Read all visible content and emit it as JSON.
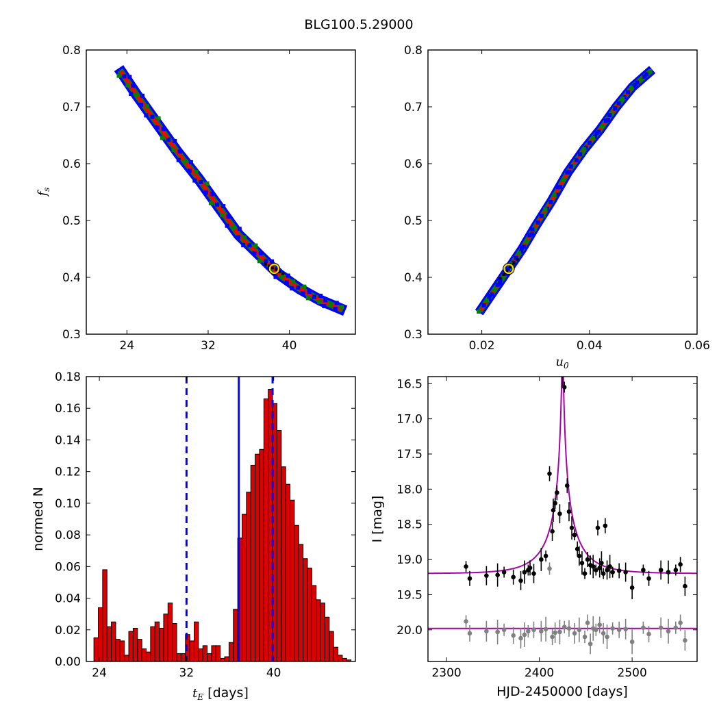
{
  "figure": {
    "title": "BLG100.5.29000"
  },
  "colors": {
    "outer": "#0000ff",
    "mid": "#008000",
    "inner": "#ff0000",
    "core": "#000000",
    "best": "#ffd700",
    "bar": "#dd0000",
    "vline": "#0000ff",
    "model": "#aa00aa",
    "resid": "#808080"
  },
  "chart_data": [
    {
      "id": "fs_vs_tE",
      "type": "heatmap",
      "ylabel": "fs",
      "xlim": [
        20,
        46.5
      ],
      "ylim": [
        0.3,
        0.8
      ],
      "xticks": [
        "24",
        "32",
        "40"
      ],
      "yticks": [
        "0.3",
        "0.4",
        "0.5",
        "0.6",
        "0.7",
        "0.8"
      ],
      "contour_track": [
        [
          23.5,
          0.76
        ],
        [
          25,
          0.72
        ],
        [
          27,
          0.67
        ],
        [
          29,
          0.62
        ],
        [
          31,
          0.575
        ],
        [
          33,
          0.525
        ],
        [
          35,
          0.475
        ],
        [
          37,
          0.44
        ],
        [
          39,
          0.405
        ],
        [
          41,
          0.38
        ],
        [
          43,
          0.36
        ],
        [
          45,
          0.345
        ]
      ],
      "best_fit": {
        "x": 38.5,
        "y": 0.415
      }
    },
    {
      "id": "fs_vs_u0",
      "type": "heatmap",
      "xlabel": "u0",
      "xlim": [
        0.01,
        0.06
      ],
      "ylim": [
        0.3,
        0.8
      ],
      "xticks": [
        "0.02",
        "0.04",
        "0.06"
      ],
      "yticks": [
        "0.3",
        "0.4",
        "0.5",
        "0.6",
        "0.7",
        "0.8"
      ],
      "contour_track": [
        [
          0.02,
          0.345
        ],
        [
          0.0225,
          0.38
        ],
        [
          0.025,
          0.415
        ],
        [
          0.0275,
          0.45
        ],
        [
          0.03,
          0.49
        ],
        [
          0.033,
          0.535
        ],
        [
          0.036,
          0.585
        ],
        [
          0.039,
          0.625
        ],
        [
          0.042,
          0.66
        ],
        [
          0.045,
          0.7
        ],
        [
          0.048,
          0.735
        ],
        [
          0.051,
          0.76
        ]
      ],
      "best_fit": {
        "x": 0.025,
        "y": 0.415
      }
    },
    {
      "id": "tE_histogram",
      "type": "bar",
      "xlabel": "tE [days]",
      "ylabel": "normed N",
      "xlim": [
        22.8,
        47.5
      ],
      "ylim": [
        0,
        0.18
      ],
      "xticks": [
        "24",
        "32",
        "40"
      ],
      "yticks": [
        "0.00",
        "0.02",
        "0.04",
        "0.06",
        "0.08",
        "0.10",
        "0.12",
        "0.14",
        "0.16",
        "0.18"
      ],
      "bin_start": 23.5,
      "bin_width": 0.4,
      "values": [
        0.015,
        0.034,
        0.058,
        0.022,
        0.025,
        0.014,
        0.013,
        0.004,
        0.019,
        0.021,
        0.014,
        0.008,
        0.006,
        0.022,
        0.025,
        0.021,
        0.03,
        0.037,
        0.024,
        0.005,
        0.005,
        0.017,
        0.013,
        0.025,
        0.008,
        0.01,
        0.005,
        0.01,
        0.01,
        0.002,
        0.003,
        0.012,
        0.033,
        0.078,
        0.093,
        0.107,
        0.124,
        0.131,
        0.134,
        0.166,
        0.172,
        0.163,
        0.146,
        0.123,
        0.112,
        0.102,
        0.086,
        0.074,
        0.065,
        0.059,
        0.048,
        0.039,
        0.037,
        0.028,
        0.019,
        0.009,
        0.004,
        0.002,
        0.001
      ],
      "median": 36.8,
      "interval": [
        32.0,
        39.9
      ]
    },
    {
      "id": "light_curve",
      "type": "scatter",
      "xlabel": "HJD-2450000 [days]",
      "ylabel": "I [mag]",
      "xlim": [
        2280,
        2570
      ],
      "ylim": [
        20.45,
        16.4
      ],
      "xticks": [
        "2300",
        "2400",
        "2500"
      ],
      "yticks": [
        "16.5",
        "17.0",
        "17.5",
        "18.0",
        "18.5",
        "19.0",
        "19.5",
        "20.0"
      ],
      "model": {
        "t0": 2425,
        "u0": 0.025,
        "tE": 38.5,
        "baseline": 19.2,
        "fs": 0.415,
        "resid_baseline": 19.98
      },
      "points": [
        [
          2321,
          19.1
        ],
        [
          2325,
          19.27
        ],
        [
          2343,
          19.23
        ],
        [
          2355,
          19.22
        ],
        [
          2362,
          19.18
        ],
        [
          2372,
          19.25
        ],
        [
          2380,
          19.3
        ],
        [
          2384,
          19.18
        ],
        [
          2388,
          19.15
        ],
        [
          2390,
          19.12
        ],
        [
          2394,
          19.2
        ],
        [
          2402,
          19.0
        ],
        [
          2407,
          18.95
        ],
        [
          2411,
          17.78
        ],
        [
          2414,
          18.6
        ],
        [
          2415,
          18.3
        ],
        [
          2417,
          18.2
        ],
        [
          2419,
          18.05
        ],
        [
          2422,
          18.35
        ],
        [
          2425,
          16.38
        ],
        [
          2427,
          16.55
        ],
        [
          2430,
          17.95
        ],
        [
          2432,
          18.32
        ],
        [
          2435,
          18.55
        ],
        [
          2438,
          18.65
        ],
        [
          2441,
          18.85
        ],
        [
          2443,
          18.95
        ],
        [
          2446,
          19.05
        ],
        [
          2449,
          19.2
        ],
        [
          2452,
          19.0
        ],
        [
          2455,
          19.08
        ],
        [
          2458,
          19.1
        ],
        [
          2461,
          19.15
        ],
        [
          2463,
          18.55
        ],
        [
          2465,
          19.12
        ],
        [
          2467,
          19.05
        ],
        [
          2469,
          19.2
        ],
        [
          2471,
          18.52
        ],
        [
          2473,
          19.15
        ],
        [
          2476,
          19.1
        ],
        [
          2479,
          19.18
        ],
        [
          2486,
          19.16
        ],
        [
          2493,
          19.18
        ],
        [
          2500,
          19.4
        ],
        [
          2512,
          19.15
        ],
        [
          2518,
          19.27
        ],
        [
          2531,
          19.15
        ],
        [
          2539,
          19.18
        ],
        [
          2547,
          19.15
        ],
        [
          2552,
          19.07
        ],
        [
          2557,
          19.38
        ]
      ],
      "residual_points": [
        [
          2321,
          19.88
        ],
        [
          2325,
          20.05
        ],
        [
          2343,
          20.02
        ],
        [
          2355,
          20.03
        ],
        [
          2362,
          20.0
        ],
        [
          2372,
          20.08
        ],
        [
          2380,
          20.12
        ],
        [
          2384,
          20.07
        ],
        [
          2388,
          20.02
        ],
        [
          2394,
          20.0
        ],
        [
          2402,
          20.02
        ],
        [
          2407,
          19.99
        ],
        [
          2411,
          19.13
        ],
        [
          2414,
          20.1
        ],
        [
          2417,
          20.04
        ],
        [
          2422,
          20.03
        ],
        [
          2427,
          19.96
        ],
        [
          2432,
          19.98
        ],
        [
          2438,
          20.05
        ],
        [
          2443,
          20.0
        ],
        [
          2449,
          20.1
        ],
        [
          2452,
          19.9
        ],
        [
          2455,
          20.2
        ],
        [
          2458,
          19.98
        ],
        [
          2461,
          20.0
        ],
        [
          2465,
          19.93
        ],
        [
          2469,
          20.05
        ],
        [
          2473,
          20.1
        ],
        [
          2479,
          19.98
        ],
        [
          2486,
          20.0
        ],
        [
          2493,
          19.99
        ],
        [
          2500,
          20.17
        ],
        [
          2512,
          19.97
        ],
        [
          2518,
          20.06
        ],
        [
          2531,
          19.97
        ],
        [
          2539,
          20.02
        ],
        [
          2547,
          19.97
        ],
        [
          2552,
          19.9
        ],
        [
          2557,
          20.15
        ]
      ]
    }
  ]
}
